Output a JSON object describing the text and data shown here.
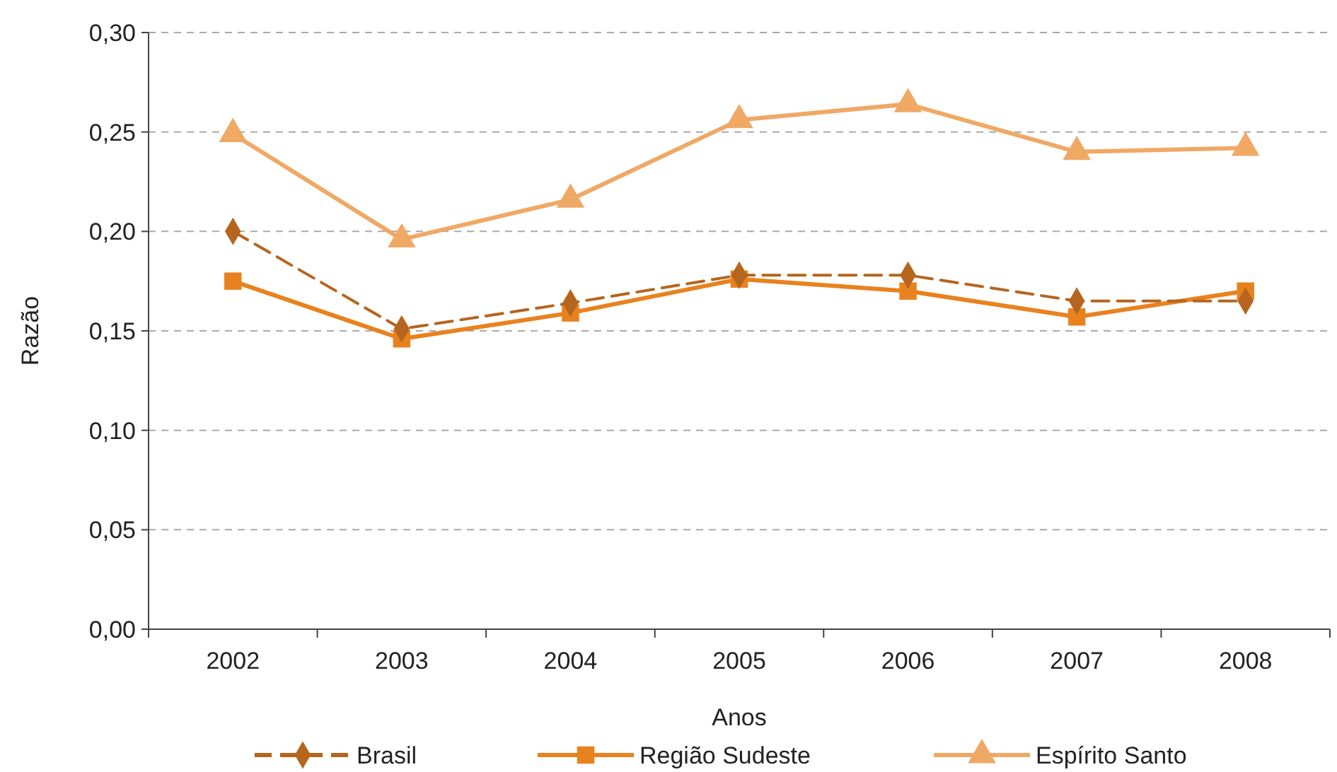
{
  "chart_data": {
    "type": "line",
    "xlabel": "Anos",
    "ylabel": "Razão",
    "categories": [
      "2002",
      "2003",
      "2004",
      "2005",
      "2006",
      "2007",
      "2008"
    ],
    "series": [
      {
        "name": "Brasil",
        "color": "#b5651d",
        "marker": "diamond",
        "line_style": "dashed",
        "values": [
          0.2,
          0.151,
          0.164,
          0.178,
          0.178,
          0.165,
          0.165
        ]
      },
      {
        "name": "Região Sudeste",
        "color": "#e8821e",
        "marker": "square",
        "line_style": "solid",
        "values": [
          0.175,
          0.146,
          0.159,
          0.176,
          0.17,
          0.157,
          0.17
        ]
      },
      {
        "name": "Espírito Santo",
        "color": "#f0a865",
        "marker": "triangle",
        "line_style": "solid",
        "values": [
          0.249,
          0.196,
          0.216,
          0.256,
          0.264,
          0.24,
          0.242
        ]
      }
    ],
    "ylim": [
      0,
      0.3
    ],
    "yticks": [
      {
        "value": 0,
        "label": "0,00"
      },
      {
        "value": 0.05,
        "label": "0,05"
      },
      {
        "value": 0.1,
        "label": "0,10"
      },
      {
        "value": 0.15,
        "label": "0,15"
      },
      {
        "value": 0.2,
        "label": "0,20"
      },
      {
        "value": 0.25,
        "label": "0,25"
      },
      {
        "value": 0.3,
        "label": "0,30"
      }
    ],
    "grid": "y",
    "legend": "bottom"
  }
}
